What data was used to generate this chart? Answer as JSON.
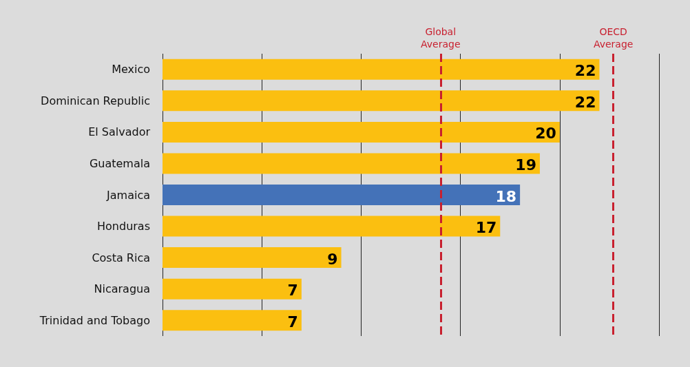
{
  "chart_data": {
    "type": "bar",
    "orientation": "horizontal",
    "categories": [
      "Mexico",
      "Dominican Republic",
      "El Salvador",
      "Guatemala",
      "Jamaica",
      "Honduras",
      "Costa Rica",
      "Nicaragua",
      "Trinidad and Tobago"
    ],
    "values": [
      22,
      22,
      20,
      19,
      18,
      17,
      9,
      7,
      7
    ],
    "colors": [
      "#fbbf10",
      "#fbbf10",
      "#fbbf10",
      "#fbbf10",
      "#4472b8",
      "#fbbf10",
      "#fbbf10",
      "#fbbf10",
      "#fbbf10"
    ],
    "xlim": [
      0,
      25
    ],
    "xticks": [
      {
        "value": 0,
        "label": null
      },
      {
        "value": 5,
        "label": null
      },
      {
        "value": 10,
        "label": null
      },
      {
        "value": 15,
        "label": null
      },
      {
        "value": 20,
        "label": null
      },
      {
        "value": 25,
        "label": null
      }
    ],
    "grid": "x",
    "tick_labels": "y",
    "data_labels": true,
    "ref_lines": [
      {
        "axis": "x",
        "value": 14,
        "label": "Global Average",
        "color": "#c8202f",
        "line_style": "dashed"
      },
      {
        "axis": "x",
        "value": 22.7,
        "label": "OECD Average",
        "color": "#c8202f",
        "line_style": "dashed"
      }
    ]
  }
}
